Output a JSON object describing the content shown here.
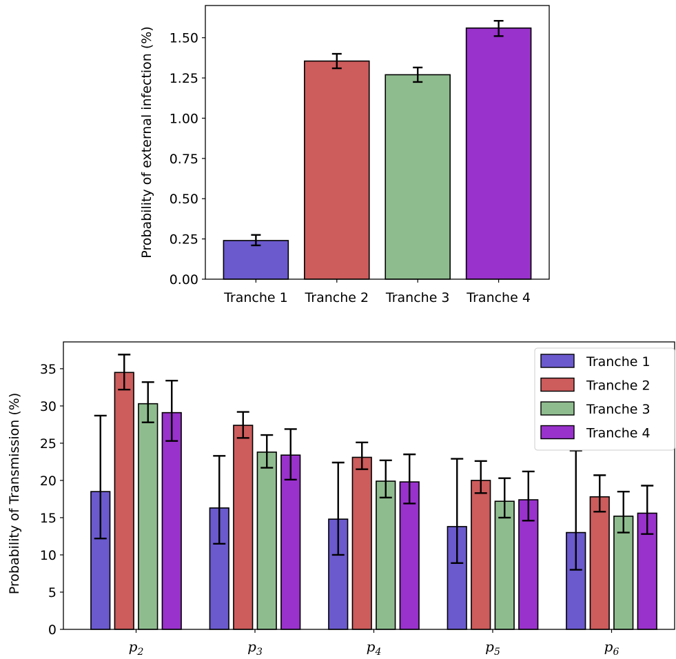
{
  "chart_data": [
    {
      "type": "bar",
      "title": "",
      "xlabel": "",
      "ylabel": "Probability of external infection (%)",
      "categories": [
        "Tranche 1",
        "Tranche 2",
        "Tranche 3",
        "Tranche 4"
      ],
      "values": [
        0.24,
        1.355,
        1.27,
        1.56
      ],
      "error_low": [
        0.21,
        1.31,
        1.225,
        1.51
      ],
      "error_high": [
        0.275,
        1.4,
        1.315,
        1.605
      ],
      "colors": [
        "#6a5acd",
        "#cd5c5c",
        "#8fbc8f",
        "#9932cc"
      ],
      "ylim": [
        0,
        1.7
      ],
      "yticks": [
        "0.00",
        "0.25",
        "0.50",
        "0.75",
        "1.00",
        "1.25",
        "1.50"
      ],
      "legend": "none",
      "grid": false
    },
    {
      "type": "bar",
      "title": "",
      "xlabel": "",
      "ylabel": "Probability of Transmission (%)",
      "categories": [
        {
          "base": "p",
          "sub": "2"
        },
        {
          "base": "p",
          "sub": "3"
        },
        {
          "base": "p",
          "sub": "4"
        },
        {
          "base": "p",
          "sub": "5"
        },
        {
          "base": "p",
          "sub": "6"
        }
      ],
      "series": [
        {
          "name": "Tranche 1",
          "color": "#6a5acd",
          "values": [
            18.5,
            16.3,
            14.8,
            13.8,
            13.0
          ],
          "error_low": [
            12.2,
            11.5,
            10.0,
            8.9,
            8.0
          ],
          "error_high": [
            28.7,
            23.3,
            22.4,
            22.9,
            24.0
          ]
        },
        {
          "name": "Tranche 2",
          "color": "#cd5c5c",
          "values": [
            34.5,
            27.4,
            23.1,
            20.0,
            17.8
          ],
          "error_low": [
            32.2,
            25.7,
            21.5,
            18.3,
            15.8
          ],
          "error_high": [
            36.9,
            29.2,
            25.1,
            22.6,
            20.7
          ]
        },
        {
          "name": "Tranche 3",
          "color": "#8fbc8f",
          "values": [
            30.3,
            23.8,
            19.9,
            17.2,
            15.2
          ],
          "error_low": [
            27.8,
            21.7,
            17.7,
            15.0,
            13.0
          ],
          "error_high": [
            33.2,
            26.1,
            22.7,
            20.3,
            18.5
          ]
        },
        {
          "name": "Tranche 4",
          "color": "#9932cc",
          "values": [
            29.1,
            23.4,
            19.8,
            17.4,
            15.6
          ],
          "error_low": [
            25.3,
            20.1,
            16.9,
            14.6,
            12.8
          ],
          "error_high": [
            33.4,
            26.9,
            23.5,
            21.2,
            19.3
          ]
        }
      ],
      "ylim": [
        0,
        38.6
      ],
      "yticks": [
        "0",
        "5",
        "10",
        "15",
        "20",
        "25",
        "30",
        "35"
      ],
      "legend": "top-right",
      "grid": false
    }
  ]
}
